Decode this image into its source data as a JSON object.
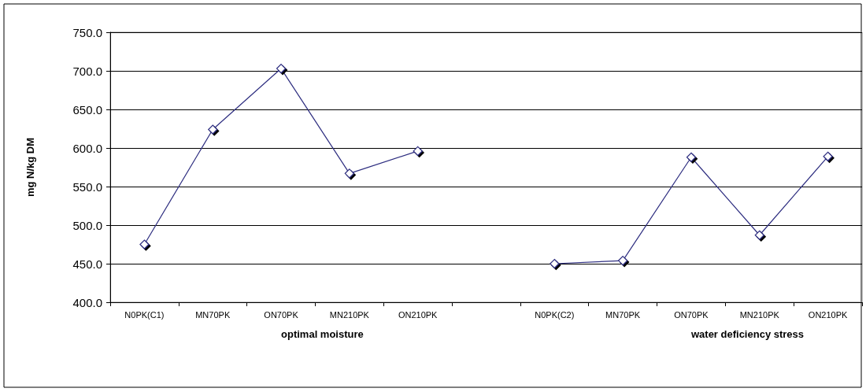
{
  "chart_data": {
    "type": "line",
    "ylabel": "mg N/kg DM",
    "categories": [
      "N0PK(C1)",
      "MN70PK",
      "ON70PK",
      "MN210PK",
      "ON210PK",
      null,
      "N0PK(C2)",
      "MN70PK",
      "ON70PK",
      "MN210PK",
      "ON210PK"
    ],
    "series": [
      {
        "color": "#2e2e80",
        "values": [
          475,
          624,
          703,
          567,
          596,
          null,
          450,
          454,
          588,
          487,
          589
        ]
      }
    ],
    "ylim": [
      400,
      750
    ],
    "yticks": [
      {
        "value": 400,
        "label": "400.0"
      },
      {
        "value": 450,
        "label": "450.0"
      },
      {
        "value": 500,
        "label": "500.0"
      },
      {
        "value": 550,
        "label": "550.0"
      },
      {
        "value": 600,
        "label": "600.0"
      },
      {
        "value": 650,
        "label": "650.0"
      },
      {
        "value": 700,
        "label": "700.0"
      },
      {
        "value": 750,
        "label": "750.0"
      }
    ],
    "annotations": [
      "optimal moisture",
      "water deficiency stress"
    ],
    "grid": "y",
    "marker": "diamond",
    "line_style": "solid"
  }
}
